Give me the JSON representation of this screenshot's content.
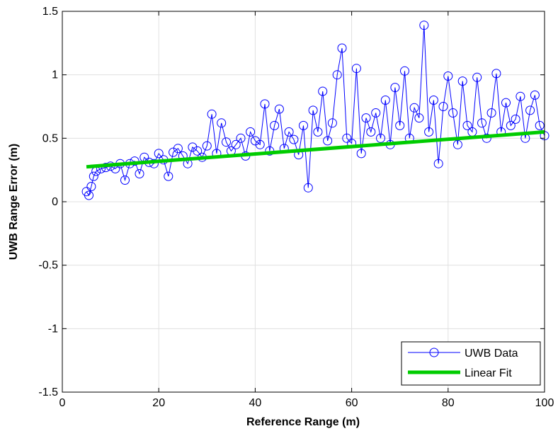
{
  "chart_data": {
    "type": "line",
    "xlabel": "Reference Range (m)",
    "ylabel": "UWB Range Error (m)",
    "xlim": [
      0,
      100
    ],
    "ylim": [
      -1.5,
      1.5
    ],
    "xticks": [
      "0",
      "20",
      "40",
      "60",
      "80",
      "100"
    ],
    "yticks": [
      "-1.5",
      "-1",
      "-0.5",
      "0",
      "0.5",
      "1",
      "1.5"
    ],
    "grid": true,
    "legend_position": "bottom-right",
    "series": [
      {
        "name": "UWB Data",
        "color": "#0000ff",
        "marker": "circle",
        "x": [
          5,
          5.5,
          6,
          6.5,
          7,
          8,
          9,
          10,
          11,
          12,
          13,
          14,
          15,
          16,
          17,
          18,
          19,
          20,
          21,
          22,
          23,
          24,
          25,
          26,
          27,
          28,
          29,
          30,
          31,
          32,
          33,
          34,
          35,
          36,
          37,
          38,
          39,
          40,
          41,
          42,
          43,
          44,
          45,
          46,
          47,
          48,
          49,
          50,
          51,
          52,
          53,
          54,
          55,
          56,
          57,
          58,
          59,
          60,
          61,
          62,
          63,
          64,
          65,
          66,
          67,
          68,
          69,
          70,
          71,
          72,
          73,
          74,
          75,
          76,
          77,
          78,
          79,
          80,
          81,
          82,
          83,
          84,
          85,
          86,
          87,
          88,
          89,
          90,
          91,
          92,
          93,
          94,
          95,
          96,
          97,
          98,
          99,
          100
        ],
        "y": [
          0.08,
          0.05,
          0.12,
          0.2,
          0.24,
          0.26,
          0.27,
          0.28,
          0.26,
          0.3,
          0.17,
          0.3,
          0.32,
          0.22,
          0.35,
          0.31,
          0.3,
          0.38,
          0.33,
          0.2,
          0.39,
          0.42,
          0.36,
          0.3,
          0.43,
          0.4,
          0.35,
          0.44,
          0.69,
          0.38,
          0.62,
          0.47,
          0.4,
          0.45,
          0.5,
          0.36,
          0.55,
          0.48,
          0.45,
          0.77,
          0.4,
          0.6,
          0.73,
          0.42,
          0.55,
          0.49,
          0.37,
          0.6,
          0.11,
          0.72,
          0.55,
          0.87,
          0.48,
          0.62,
          1.0,
          1.21,
          0.5,
          0.46,
          1.05,
          0.38,
          0.66,
          0.55,
          0.7,
          0.5,
          0.8,
          0.45,
          0.9,
          0.6,
          1.03,
          0.5,
          0.74,
          0.66,
          1.39,
          0.55,
          0.8,
          0.3,
          0.75,
          0.99,
          0.7,
          0.45,
          0.95,
          0.6,
          0.55,
          0.98,
          0.62,
          0.5,
          0.7,
          1.01,
          0.55,
          0.78,
          0.6,
          0.65,
          0.83,
          0.5,
          0.72,
          0.84,
          0.6,
          0.52
        ]
      },
      {
        "name": "Linear Fit",
        "color": "#00cc00",
        "x": [
          5,
          100
        ],
        "y": [
          0.275,
          0.55
        ]
      }
    ]
  }
}
